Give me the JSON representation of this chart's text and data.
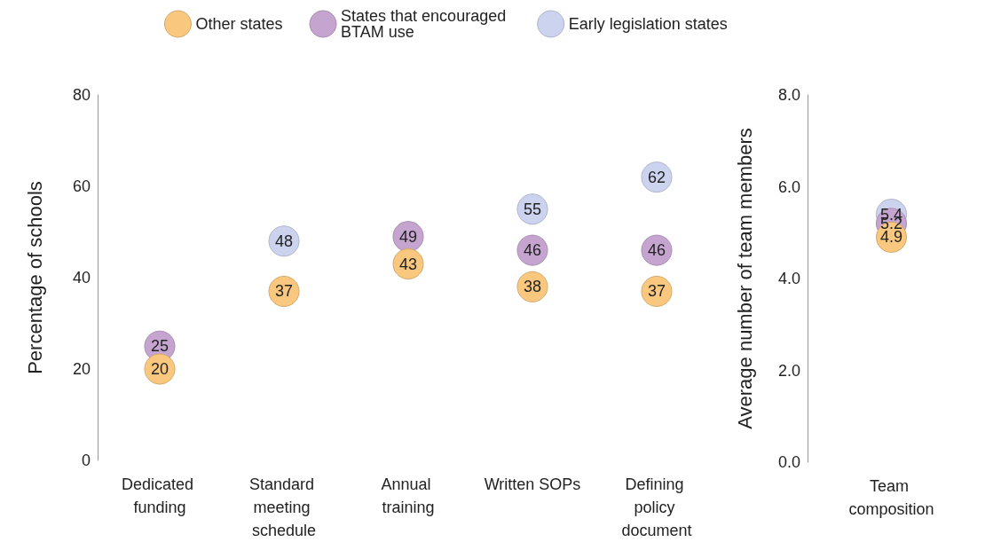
{
  "chart_data": [
    {
      "type": "scatter",
      "ylabel": "Percentage of schools",
      "categories": [
        "Dedicated funding",
        "Standard meeting schedule",
        "Annual training",
        "Written SOPs",
        "Defining policy document"
      ],
      "ylim": [
        0,
        80
      ],
      "yticks": [
        0,
        20,
        40,
        60,
        80
      ],
      "grid": false,
      "legend": "top",
      "marker": "circle",
      "series": [
        {
          "name": "Other states",
          "color": "#f9c77e",
          "values": [
            20,
            37,
            43,
            38,
            37
          ],
          "value_labels": [
            "20",
            "37",
            "43",
            "38",
            "37"
          ]
        },
        {
          "name": "States that encouraged BTAM use",
          "color": "#c6a4d0",
          "values": [
            25,
            null,
            49,
            46,
            46
          ],
          "value_labels": [
            "25",
            null,
            "49",
            "46",
            "46"
          ]
        },
        {
          "name": "Early legislation states",
          "color": "#ccd3ee",
          "values": [
            null,
            48,
            null,
            55,
            62
          ],
          "value_labels": [
            null,
            "48",
            null,
            "55",
            "62"
          ]
        }
      ]
    },
    {
      "type": "scatter",
      "ylabel": "Average number of team members",
      "categories": [
        "Team composition"
      ],
      "ylim": [
        0,
        8
      ],
      "yticks": [
        {
          "value": 0,
          "label": "0.0"
        },
        {
          "value": 2,
          "label": "2.0"
        },
        {
          "value": 4,
          "label": "4.0"
        },
        {
          "value": 6,
          "label": "6.0"
        },
        {
          "value": 8,
          "label": "8.0"
        }
      ],
      "grid": false,
      "legend": false,
      "marker": "circle",
      "series": [
        {
          "color": "#f9c77e",
          "values": [
            4.9
          ],
          "value_labels": [
            "4.9"
          ]
        },
        {
          "color": "#c6a4d0",
          "values": [
            5.2
          ],
          "value_labels": [
            "5.2"
          ]
        },
        {
          "color": "#ccd3ee",
          "values": [
            5.4
          ],
          "value_labels": [
            "5.4"
          ]
        }
      ]
    }
  ]
}
